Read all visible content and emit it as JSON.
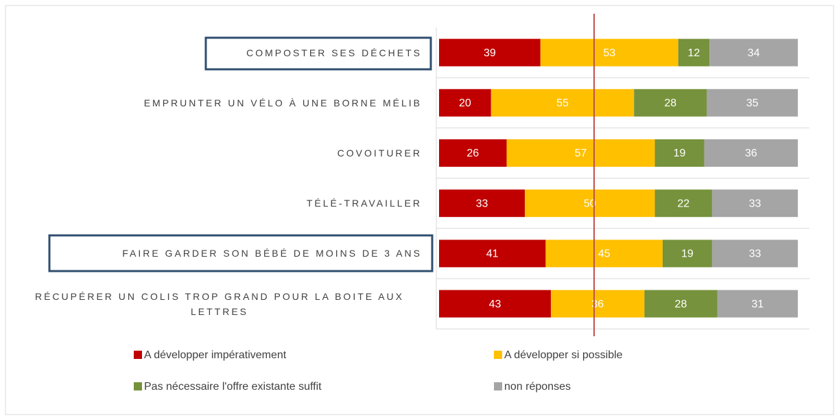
{
  "chart_data": {
    "type": "stacked-bar-horizontal",
    "categories": [
      "COMPOSTER SES DÉCHETS",
      "EMPRUNTER UN VÉLO À UNE BORNE MÉLIB",
      "COVOITURER",
      "TÉLÉ-TRAVAILLER",
      "FAIRE GARDER SON BÉBÉ DE MOINS DE 3 ANS",
      "RÉCUPÉRER UN COLIS TROP GRAND POUR LA BOITE AUX LETTRES"
    ],
    "series": [
      {
        "name": "A développer impérativement",
        "color": "#c00000",
        "values": [
          39,
          20,
          26,
          33,
          41,
          43
        ]
      },
      {
        "name": "A développer si possible",
        "color": "#ffc000",
        "values": [
          53,
          55,
          57,
          50,
          45,
          36
        ]
      },
      {
        "name": "Pas nécessaire l'offre existante suffit",
        "color": "#76923c",
        "values": [
          12,
          28,
          19,
          22,
          19,
          28
        ]
      },
      {
        "name": "non réponses",
        "color": "#a5a5a5",
        "values": [
          34,
          35,
          36,
          33,
          33,
          31
        ]
      }
    ],
    "legend": "bottom"
  }
}
